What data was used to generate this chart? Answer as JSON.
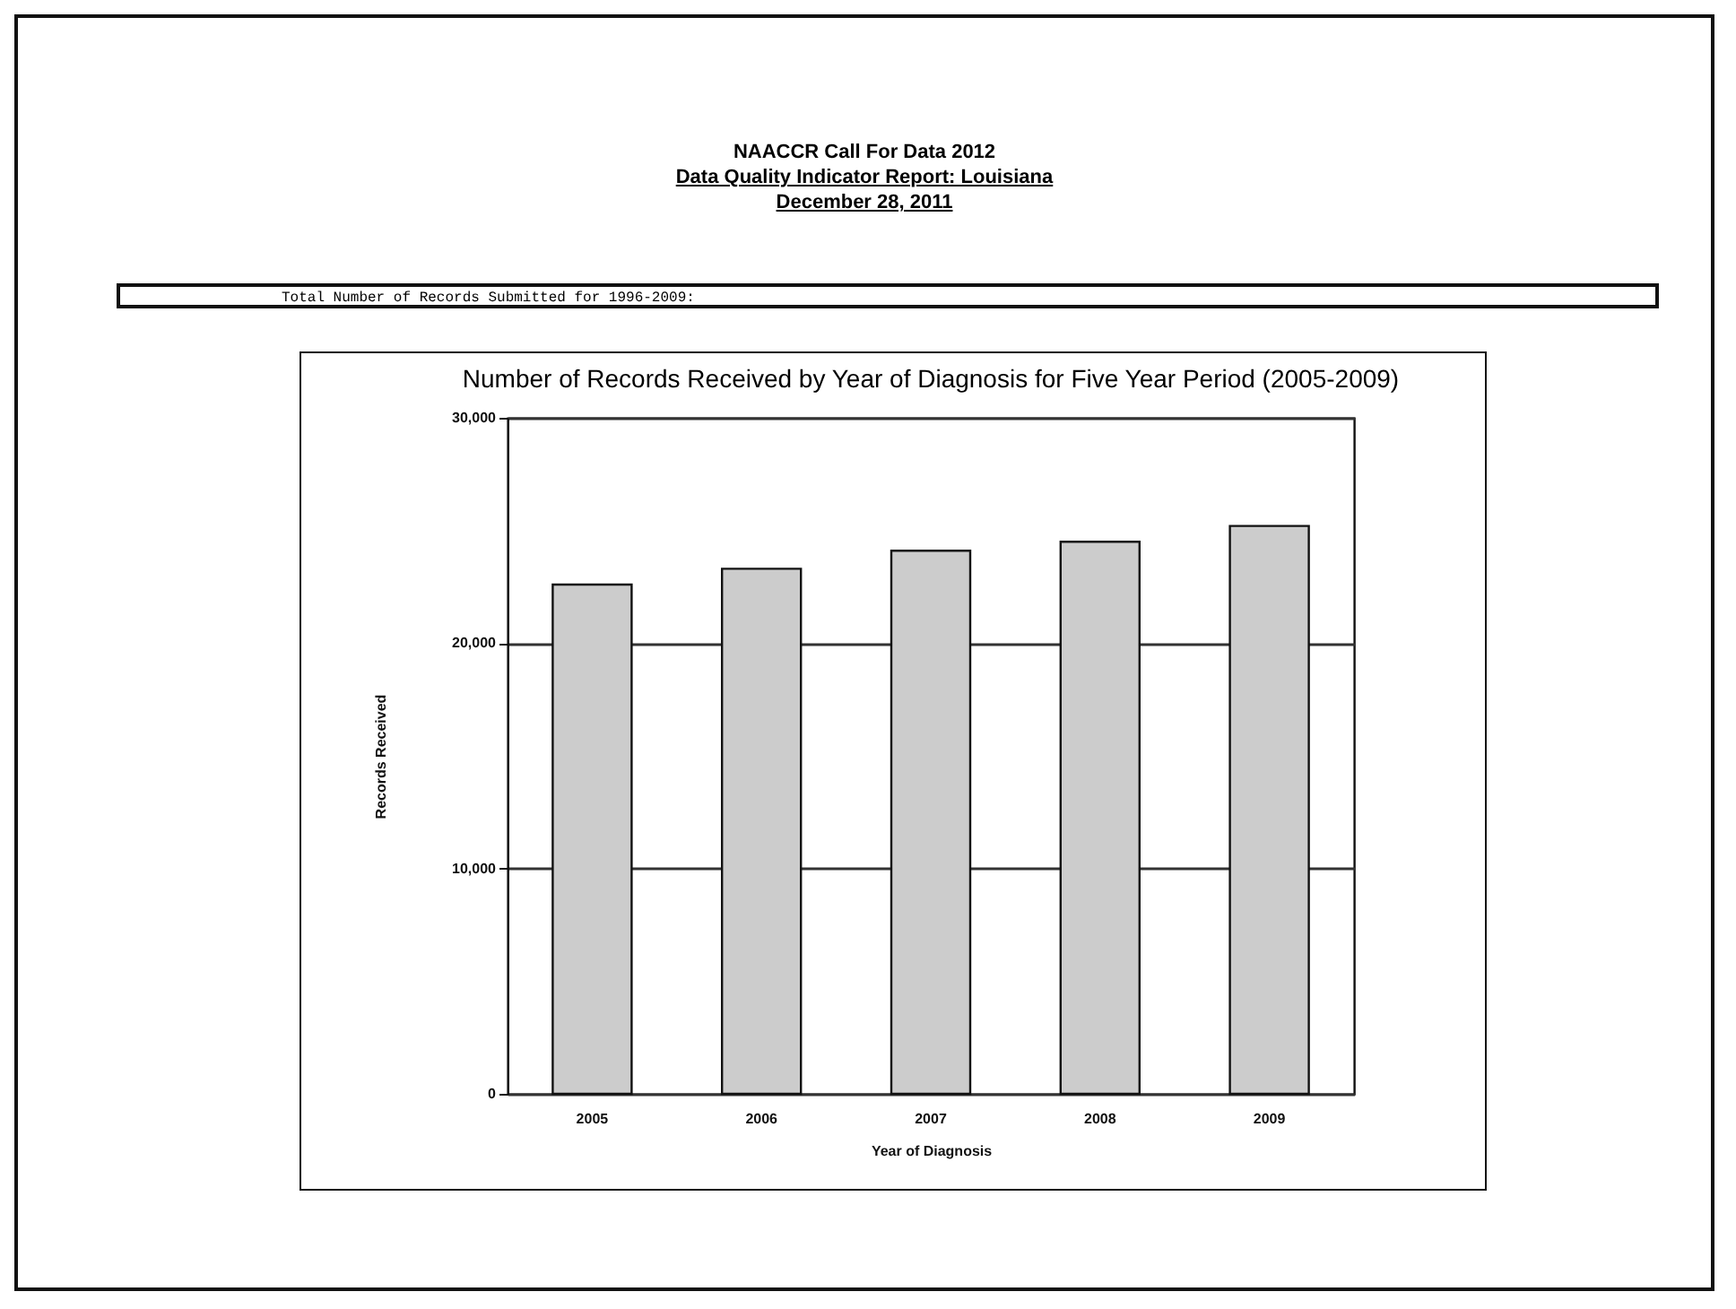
{
  "chart_data": {
    "type": "bar",
    "title": "Number of Records Received by Year of Diagnosis for Five Year Period (2005-2009)",
    "xlabel": "Year of Diagnosis",
    "ylabel": "Records Received",
    "annotations": [
      "NAACCR Call For Data 2012",
      "Data Quality Indicator Report: Louisiana",
      "December 28, 2011",
      "Total Number of Records Submitted for 1996-2009:"
    ],
    "categories": [
      "2005",
      "2006",
      "2007",
      "2008",
      "2009"
    ],
    "values": [
      22600,
      23300,
      24100,
      24500,
      25200
    ],
    "color": "#cccccc",
    "ylim": [
      0,
      30000
    ],
    "yticks": [
      0,
      {
        "value": 10000,
        "label": "10,000"
      },
      {
        "value": 20000,
        "label": "20,000"
      },
      {
        "value": 30000,
        "label": "30,000"
      }
    ],
    "grid": "y"
  }
}
